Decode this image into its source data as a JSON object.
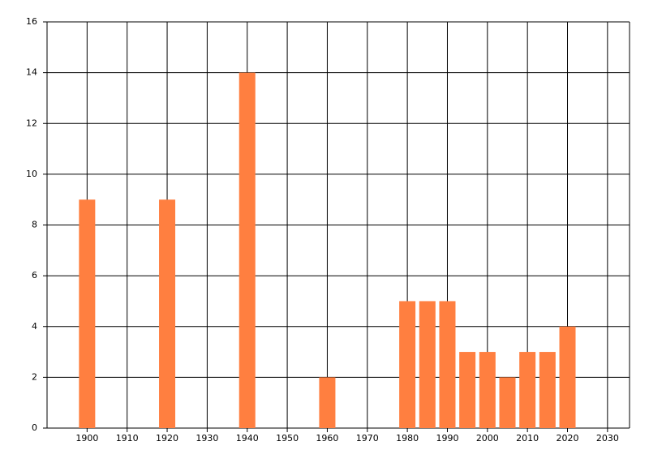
{
  "chart_data": {
    "type": "bar",
    "x": [
      1900,
      1920,
      1940,
      1960,
      1980,
      1985,
      1990,
      1995,
      2000,
      2005,
      2010,
      2015,
      2020
    ],
    "values": [
      9,
      9,
      14,
      2,
      5,
      5,
      5,
      3,
      3,
      2,
      3,
      3,
      4
    ],
    "color": "#ff7f40",
    "xlim": [
      1890,
      2035.5
    ],
    "xticks": [
      1900,
      1910,
      1920,
      1930,
      1940,
      1950,
      1960,
      1970,
      1980,
      1990,
      2000,
      2010,
      2020,
      2030
    ],
    "ylim": [
      0,
      16
    ],
    "yticks": [
      0,
      2,
      4,
      6,
      8,
      10,
      12,
      14,
      16
    ],
    "grid": true
  }
}
